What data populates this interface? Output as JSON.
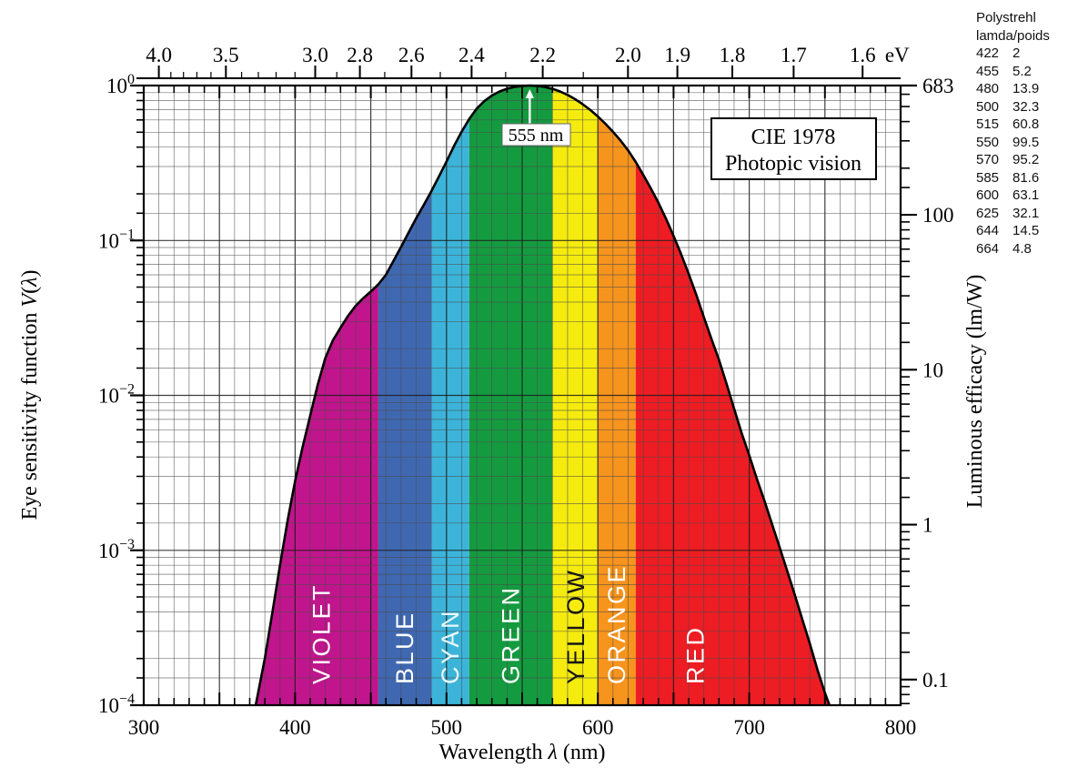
{
  "title_box": {
    "line1": "CIE 1978",
    "line2": "Photopic vision"
  },
  "peak_annotation": {
    "label": "555 nm"
  },
  "side_table": {
    "title_line1": "Polystrehl",
    "title_line2": "lamda/poids",
    "rows": [
      [
        "422",
        "2"
      ],
      [
        "455",
        "5.2"
      ],
      [
        "480",
        "13.9"
      ],
      [
        "500",
        "32.3"
      ],
      [
        "515",
        "60.8"
      ],
      [
        "550",
        "99.5"
      ],
      [
        "570",
        "95.2"
      ],
      [
        "585",
        "81.6"
      ],
      [
        "600",
        "63.1"
      ],
      [
        "625",
        "32.1"
      ],
      [
        "644",
        "14.5"
      ],
      [
        "664",
        "4.8"
      ]
    ]
  },
  "chart_data": {
    "type": "area",
    "title": "CIE 1978 Photopic vision",
    "xlabel": "Wavelength λ (nm)",
    "ylabel_left": "Eye sensitivity function V(λ)",
    "ylabel_right": "Luminous efficacy (lm/W)",
    "x_range_nm": [
      300,
      800
    ],
    "y_left_log_range": [
      0.0001,
      1
    ],
    "x_ticks_nm": [
      300,
      400,
      500,
      600,
      700,
      800
    ],
    "left_tick_exponents": [
      0,
      -1,
      -2,
      -3,
      -4
    ],
    "right_axis_ticks_lm_per_W": [
      {
        "value": 683,
        "label": "683"
      },
      {
        "value": 100,
        "label": "100"
      },
      {
        "value": 10,
        "label": "10"
      },
      {
        "value": 1,
        "label": "1"
      },
      {
        "value": 0.1,
        "label": "0.1"
      }
    ],
    "top_axis": {
      "unit": "eV",
      "ticks": [
        {
          "ev": 4.0,
          "label": "4.0"
        },
        {
          "ev": 3.5,
          "label": "3.5"
        },
        {
          "ev": 3.0,
          "label": "3.0"
        },
        {
          "ev": 2.8,
          "label": "2.8"
        },
        {
          "ev": 2.6,
          "label": "2.6"
        },
        {
          "ev": 2.4,
          "label": "2.4"
        },
        {
          "ev": 2.2,
          "label": "2.2"
        },
        {
          "ev": 2.0,
          "label": "2.0"
        },
        {
          "ev": 1.9,
          "label": "1.9"
        },
        {
          "ev": 1.8,
          "label": "1.8"
        },
        {
          "ev": 1.7,
          "label": "1.7"
        },
        {
          "ev": 1.6,
          "label": "1.6"
        }
      ]
    },
    "peak": {
      "lambda_nm": 555,
      "v": 1.0
    },
    "bands": [
      {
        "name": "violet",
        "label": "VIOLET",
        "range_nm": [
          370,
          455
        ],
        "color": "#C0158C",
        "label_color": "#FFFFFF",
        "label_nm": 417
      },
      {
        "name": "blue",
        "label": "BLUE",
        "range_nm": [
          455,
          490
        ],
        "color": "#3F68B1",
        "label_color": "#FFFFFF",
        "label_nm": 472
      },
      {
        "name": "cyan",
        "label": "CYAN",
        "range_nm": [
          490,
          515
        ],
        "color": "#3CB4DA",
        "label_color": "#EAF8FB",
        "label_nm": 502
      },
      {
        "name": "green",
        "label": "GREEN",
        "range_nm": [
          515,
          570
        ],
        "color": "#149B40",
        "label_color": "#FFFFFF",
        "label_nm": 542
      },
      {
        "name": "yellow",
        "label": "YELLOW",
        "range_nm": [
          570,
          600
        ],
        "color": "#F5EB0F",
        "label_color": "#161616",
        "label_nm": 585
      },
      {
        "name": "orange",
        "label": "ORANGE",
        "range_nm": [
          600,
          625
        ],
        "color": "#F7941D",
        "label_color": "#FFFFFF",
        "label_nm": 612
      },
      {
        "name": "red",
        "label": "RED",
        "range_nm": [
          625,
          755
        ],
        "color": "#EE1C23",
        "label_color": "#FFFFFF",
        "label_nm": 664
      }
    ],
    "curve": {
      "lambda_nm": [
        374,
        380,
        385,
        390,
        395,
        400,
        405,
        410,
        415,
        420,
        425,
        430,
        435,
        440,
        445,
        450,
        455,
        460,
        465,
        470,
        475,
        480,
        485,
        490,
        495,
        500,
        505,
        510,
        515,
        520,
        525,
        530,
        535,
        540,
        545,
        550,
        555,
        560,
        565,
        570,
        575,
        580,
        585,
        590,
        595,
        600,
        605,
        610,
        615,
        620,
        625,
        630,
        635,
        640,
        645,
        650,
        655,
        660,
        665,
        670,
        675,
        680,
        685,
        690,
        695,
        700,
        705,
        710,
        715,
        720,
        725,
        730,
        735,
        740,
        745,
        750,
        753
      ],
      "v": [
        0.0001,
        0.0002,
        0.000396,
        0.0008,
        0.00155,
        0.0028,
        0.00466,
        0.0074,
        0.0118,
        0.0175,
        0.0227,
        0.0273,
        0.0326,
        0.0379,
        0.0424,
        0.0468,
        0.0521,
        0.06,
        0.0739,
        0.091,
        0.1126,
        0.139,
        0.1693,
        0.208,
        0.2586,
        0.323,
        0.4073,
        0.503,
        0.6082,
        0.71,
        0.7932,
        0.862,
        0.9149,
        0.954,
        0.9803,
        0.995,
        1.0,
        0.995,
        0.9786,
        0.952,
        0.9154,
        0.87,
        0.8163,
        0.757,
        0.6949,
        0.631,
        0.5668,
        0.503,
        0.4412,
        0.381,
        0.321,
        0.265,
        0.217,
        0.175,
        0.1382,
        0.107,
        0.0816,
        0.061,
        0.0446,
        0.032,
        0.0232,
        0.017,
        0.0119,
        0.0082,
        0.0057,
        0.0041,
        0.0029,
        0.0021,
        0.00148,
        0.00105,
        0.00074,
        0.00052,
        0.00036,
        0.00025,
        0.00017,
        0.00012,
        0.0001
      ]
    }
  }
}
